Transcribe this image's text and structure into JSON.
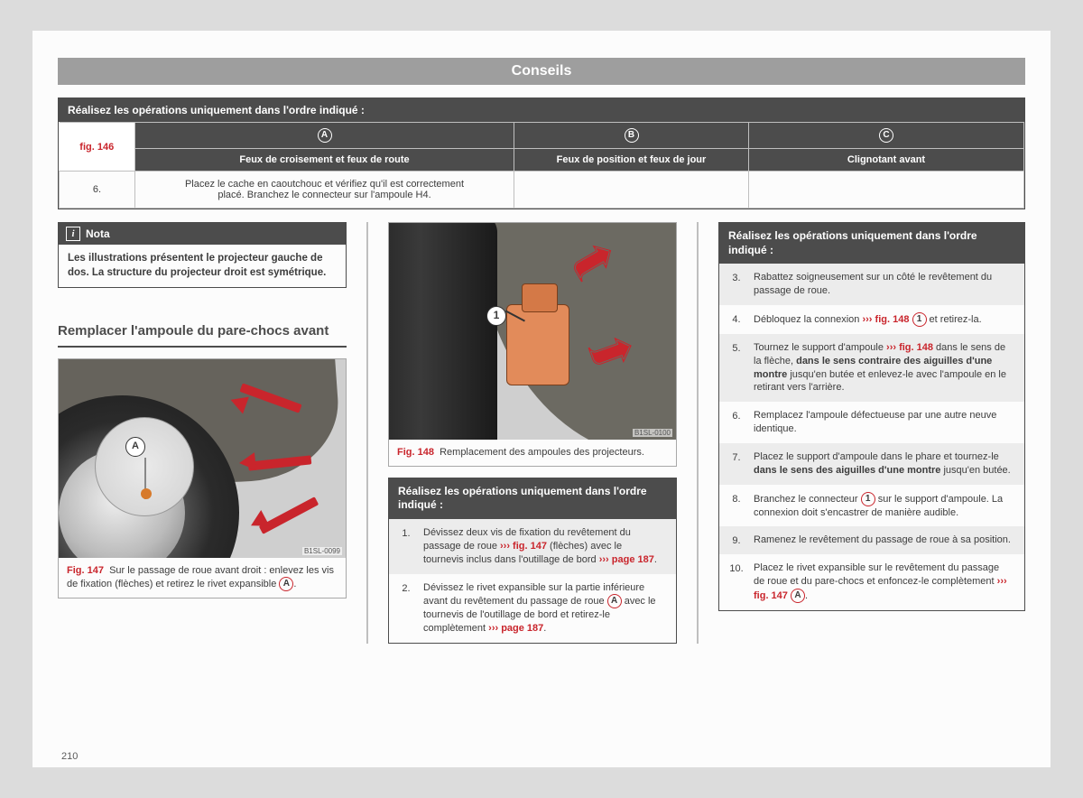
{
  "page_number": "210",
  "banner": "Conseils",
  "colors": {
    "accent": "#c9252c",
    "dark": "#4c4c4c",
    "alt_row": "#ececec"
  },
  "top_table": {
    "heading": "Réalisez les opérations uniquement dans l'ordre indiqué :",
    "fig_ref": "fig. 146",
    "cols": {
      "a_letter": "A",
      "b_letter": "B",
      "c_letter": "C",
      "a_label": "Feux de croisement et feux de route",
      "b_label": "Feux de position et feux de jour",
      "c_label": "Clignotant avant"
    },
    "row_num": "6.",
    "row_text": "Placez le cache en caoutchouc et vérifiez qu'il est correctement placé. Branchez le connecteur sur l'ampoule H4."
  },
  "nota": {
    "title": "Nota",
    "body": "Les illustrations présentent le projecteur gauche de dos. La structure du projecteur droit est symétrique."
  },
  "section_title": "Remplacer l'ampoule du pare-chocs avant",
  "fig147": {
    "label": "Fig. 147",
    "caption_pre": "Sur le passage de roue avant droit : enlevez les vis de fixation (flèches) et retirez le rivet expansible",
    "letter": "A",
    "period": ".",
    "code": "B1SL-0099"
  },
  "fig148": {
    "label": "Fig. 148",
    "caption": "Remplacement des ampoules des projecteurs.",
    "callout_num": "1",
    "code": "B1SL-0100"
  },
  "ops_mid": {
    "heading": "Réalisez les opérations uniquement dans l'ordre indiqué :",
    "rows": [
      {
        "n": "1.",
        "pre": "Dévissez deux vis de fixation du revêtement du passage de roue ",
        "ref1": "››› fig. 147",
        "mid": " (flèches) avec le tournevis inclus dans l'outillage de bord ",
        "ref2": "››› page 187",
        "post": "."
      },
      {
        "n": "2.",
        "pre": "Dévissez le rivet expansible sur la partie inférieure avant du revêtement du passage de roue ",
        "circle": "A",
        "mid": " avec le tournevis de l'outillage de bord et retirez-le complètement ",
        "ref2": "››› page 187",
        "post": "."
      }
    ]
  },
  "ops_right": {
    "heading": "Réalisez les opérations uniquement dans l'ordre indiqué :",
    "rows": [
      {
        "n": "3.",
        "html": "Rabattez soigneusement sur un côté le revêtement du passage de roue."
      },
      {
        "n": "4.",
        "pre": "Débloquez la connexion ",
        "ref": "››› fig. 148",
        "circle": "1",
        "post": " et retirez-la."
      },
      {
        "n": "5.",
        "pre": "Tournez le support d'ampoule ",
        "ref": "››› fig. 148",
        "mid": " dans le sens de la flèche, ",
        "bold": "dans le sens contraire des aiguilles d'une montre",
        "post": " jusqu'en butée et enlevez-le avec l'ampoule en le retirant vers l'arrière."
      },
      {
        "n": "6.",
        "html": "Remplacez l'ampoule défectueuse par une autre neuve identique."
      },
      {
        "n": "7.",
        "pre": "Placez le support d'ampoule dans le phare et tournez-le ",
        "bold": "dans le sens des aiguilles d'une montre",
        "post": " jusqu'en butée."
      },
      {
        "n": "8.",
        "pre": "Branchez le connecteur ",
        "circle": "1",
        "post": " sur le support d'ampoule. La connexion doit s'encastrer de manière audible."
      },
      {
        "n": "9.",
        "html": "Ramenez le revêtement du passage de roue à sa position."
      },
      {
        "n": "10.",
        "pre": "Placez le rivet expansible sur le revêtement du passage de roue et du pare-chocs et enfoncez-le complètement ",
        "ref": "››› fig. 147",
        "circle": "A",
        "post": "."
      }
    ]
  }
}
